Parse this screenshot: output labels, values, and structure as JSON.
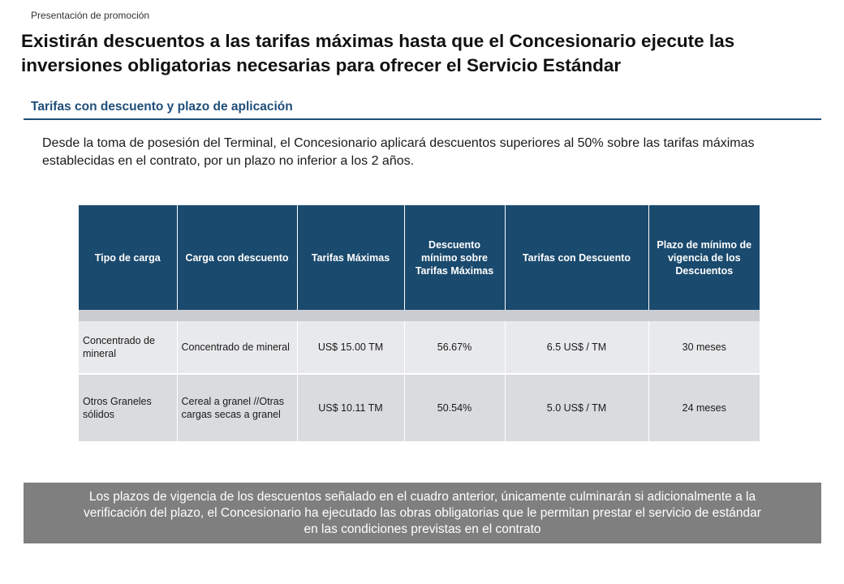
{
  "kicker": "Presentación de promoción",
  "title": "Existirán descuentos a las tarifas máximas hasta que el Concesionario ejecute las inversiones obligatorias necesarias para ofrecer el Servicio Estándar",
  "section_heading": "Tarifas con descuento y plazo de aplicación",
  "intro": "Desde la toma de posesión del Terminal, el Concesionario aplicará descuentos superiores al 50% sobre las tarifas máximas establecidas en el contrato, por un plazo no inferior a los 2 años.",
  "table": {
    "headers": [
      "Tipo de carga",
      "Carga con descuento",
      "Tarifas Máximas",
      "Descuento mínimo sobre Tarifas Máximas",
      "Tarifas con Descuento",
      "Plazo de mínimo de vigencia de los Descuentos"
    ],
    "rows": [
      [
        "Concentrado de mineral",
        "Concentrado de mineral",
        "US$ 15.00 TM",
        "56.67%",
        "6.5 US$ / TM",
        "30 meses"
      ],
      [
        "Otros Graneles sólidos",
        "Cereal a granel //Otras cargas secas a granel",
        "US$ 10.11 TM",
        "50.54%",
        "5.0 US$ / TM",
        "24 meses"
      ]
    ]
  },
  "note": "Los plazos de vigencia de los descuentos señalado en el cuadro anterior, únicamente culminarán si adicionalmente a la verificación del plazo, el Concesionario ha ejecutado las obras obligatorias que le permitan prestar el servicio de estándar en las condiciones previstas en el contrato",
  "colors": {
    "header_bg": "#1a4a6e",
    "section_accent": "#1f4e79",
    "row1_bg": "#e8e9eb",
    "row2_bg": "#d9dbde",
    "note_bg": "#7f7f7f"
  }
}
